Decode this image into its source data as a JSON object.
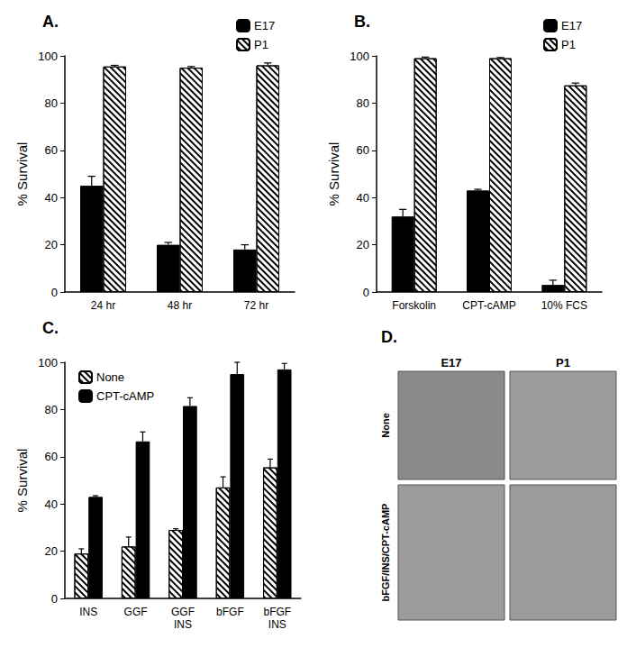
{
  "chart_data": [
    {
      "type": "bar",
      "title": "A.",
      "y_label": "% Survival",
      "categories": [
        "24 hr",
        "48 hr",
        "72 hr"
      ],
      "series": [
        {
          "name": "E17",
          "color": "#000000",
          "marker": "solid",
          "values": [
            45,
            20,
            18
          ],
          "errors": [
            4,
            1,
            2
          ]
        },
        {
          "name": "P1",
          "color": "#000000",
          "marker": "hatch",
          "values": [
            95.5,
            95,
            96
          ],
          "errors": [
            0.5,
            0.5,
            1
          ]
        }
      ],
      "ylim": [
        0,
        100
      ],
      "yticks": [
        0,
        20,
        40,
        60,
        80,
        100
      ],
      "grid": false,
      "legend": "upper right"
    },
    {
      "type": "bar",
      "title": "B.",
      "y_label": "% Survival",
      "categories": [
        "Forskolin",
        "CPT-cAMP",
        "10% FCS"
      ],
      "series": [
        {
          "name": "E17",
          "color": "#000000",
          "marker": "solid",
          "values": [
            32,
            43,
            3
          ],
          "errors": [
            3,
            0.5,
            2
          ]
        },
        {
          "name": "P1",
          "color": "#000000",
          "marker": "hatch",
          "values": [
            99,
            99,
            87.5
          ],
          "errors": [
            0.5,
            0.3,
            1
          ]
        }
      ],
      "ylim": [
        0,
        100
      ],
      "yticks": [
        0,
        20,
        40,
        60,
        80,
        100
      ],
      "grid": false,
      "legend": "upper right"
    },
    {
      "type": "bar",
      "title": "C.",
      "y_label": "% Survival",
      "categories": [
        "INS",
        "GGF",
        "GGF\nINS",
        "bFGF",
        "bFGF\nINS"
      ],
      "series": [
        {
          "name": "None",
          "color": "#000000",
          "marker": "hatch",
          "values": [
            19,
            22,
            29,
            47,
            55.5
          ],
          "errors": [
            2,
            4,
            0.5,
            4.5,
            3.5
          ]
        },
        {
          "name": "CPT-cAMP",
          "color": "#000000",
          "marker": "solid",
          "values": [
            43,
            66.5,
            81.5,
            95,
            97
          ],
          "errors": [
            0.5,
            4,
            3.5,
            5,
            2.5
          ]
        }
      ],
      "ylim": [
        0,
        100
      ],
      "yticks": [
        0,
        20,
        40,
        60,
        80,
        100
      ],
      "grid": false,
      "legend": "upper left"
    }
  ],
  "panel_d": {
    "title": "D.",
    "columns": [
      "E17",
      "P1"
    ],
    "rows": [
      "None",
      "bFGF/INS/CPT-cAMP"
    ]
  }
}
